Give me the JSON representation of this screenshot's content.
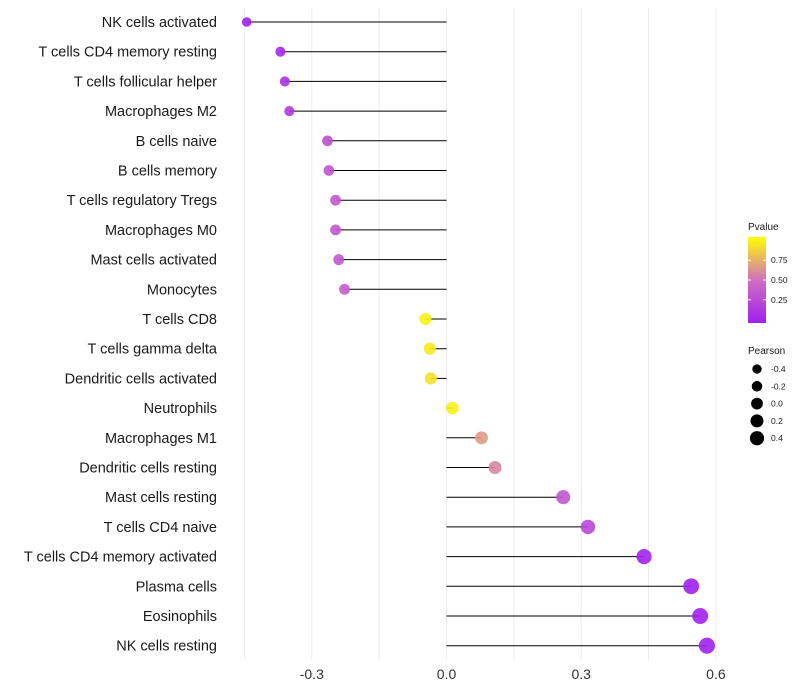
{
  "chart_data": {
    "type": "lollipop",
    "title": "",
    "xlabel": "",
    "ylabel": "",
    "xlim": [
      -0.45,
      0.61
    ],
    "xticks": [
      -0.3,
      0.0,
      0.3,
      0.6
    ],
    "xtick_labels": [
      "-0.3",
      "0.0",
      "0.3",
      "0.6"
    ],
    "grid": true,
    "categories": [
      "NK cells activated",
      "T cells CD4 memory resting",
      "T cells follicular helper",
      "Macrophages M2",
      "B cells naive",
      "B cells memory",
      "T cells regulatory  Tregs ",
      "Macrophages M0",
      "Mast cells activated",
      "Monocytes",
      "T cells CD8",
      "T cells gamma delta",
      "Dendritic cells activated",
      "Neutrophils",
      "Macrophages M1",
      "Dendritic cells resting",
      "Mast cells resting",
      "T cells CD4 naive",
      "T cells CD4 memory activated",
      "Plasma cells",
      "Eosinophils",
      "NK cells resting"
    ],
    "pearson": [
      -0.445,
      -0.37,
      -0.36,
      -0.35,
      -0.265,
      -0.262,
      -0.247,
      -0.247,
      -0.24,
      -0.227,
      -0.047,
      -0.037,
      -0.035,
      0.013,
      0.078,
      0.108,
      0.26,
      0.315,
      0.44,
      0.545,
      0.565,
      0.58
    ],
    "pvalue": [
      0.0,
      0.05,
      0.1,
      0.15,
      0.3,
      0.32,
      0.35,
      0.35,
      0.35,
      0.38,
      0.95,
      0.92,
      0.9,
      0.95,
      0.65,
      0.58,
      0.35,
      0.25,
      0.02,
      0.0,
      0.0,
      0.0
    ],
    "color_legend": {
      "title": "Pvalue",
      "ticks": [
        "0.75",
        "0.50",
        "0.25"
      ],
      "low_color": "#a020f0",
      "mid_color": "#d070c0",
      "high_color": "#ffff00"
    },
    "size_legend": {
      "title": "Pearson",
      "entries": [
        "-0.4",
        "-0.2",
        "0.0",
        "0.2",
        "0.4"
      ]
    }
  }
}
